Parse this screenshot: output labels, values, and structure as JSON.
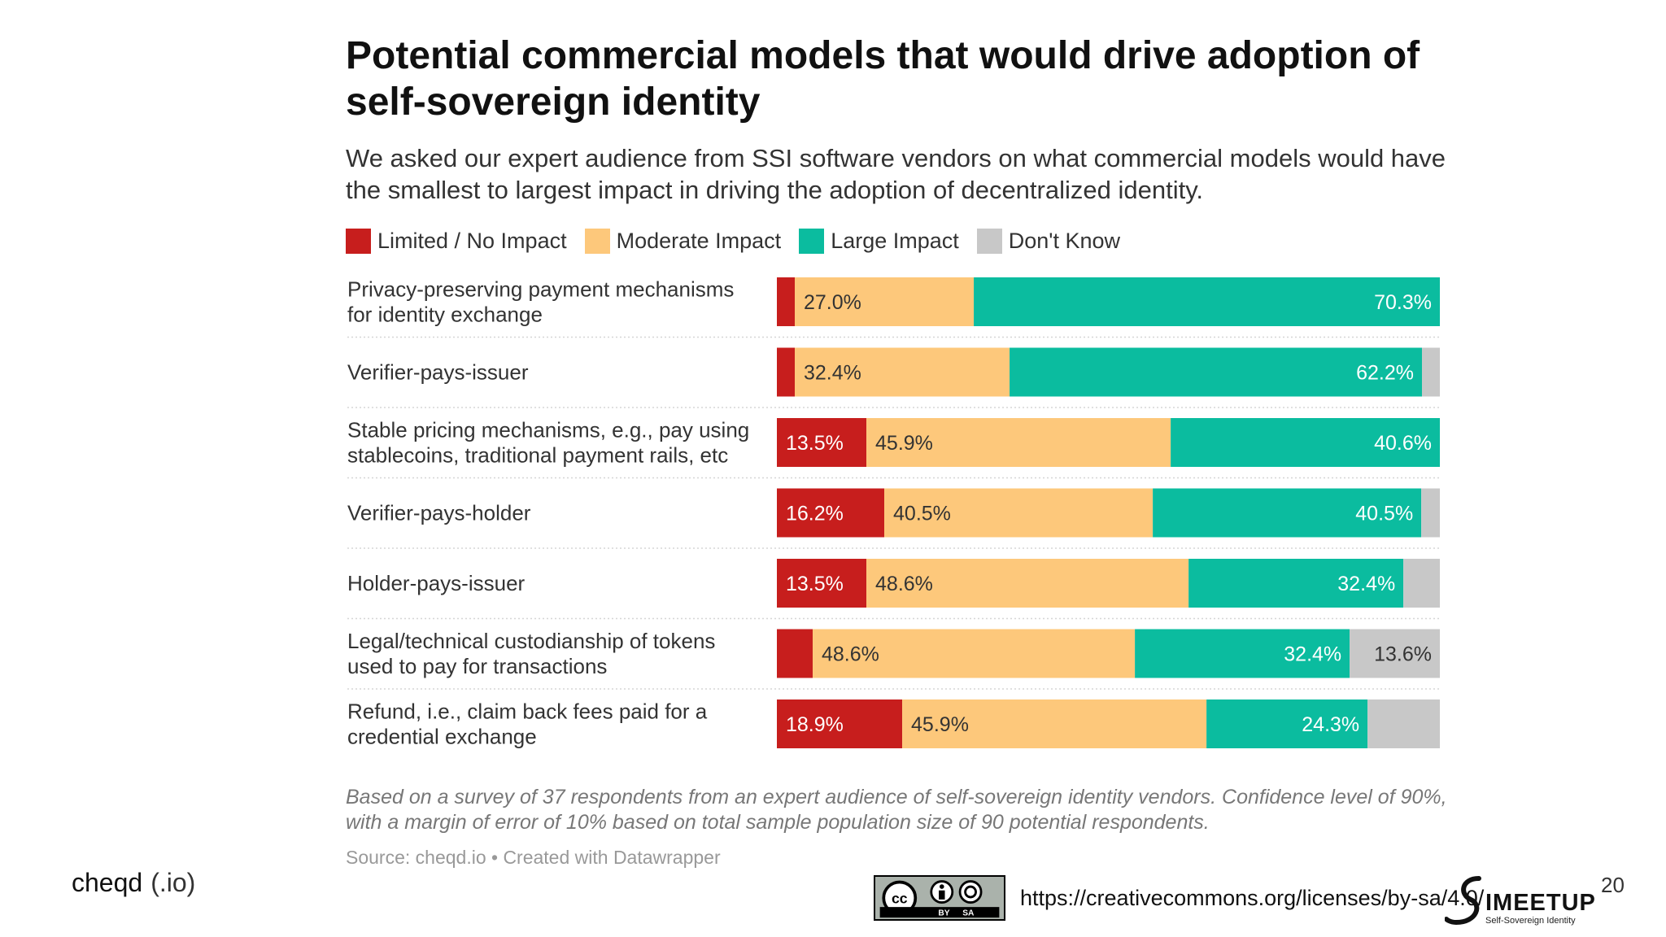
{
  "slide": {
    "brand": "cheqd",
    "brand_suffix": "(.io)",
    "license_url": "https://creativecommons.org/licenses/by-sa/4.0/",
    "license_badge": "BY SA",
    "meetup_logo_text": "IMEETUP",
    "meetup_logo_sub": "Self-Sovereign Identity",
    "page_number": "20"
  },
  "chart_data": {
    "type": "bar",
    "orientation": "horizontal",
    "stacked": true,
    "title": "Potential commercial models that would drive adoption of self-sovereign identity",
    "subtitle": "We asked our expert audience from SSI software vendors on what commercial models would have the smallest to largest impact in driving the adoption of decentralized identity.",
    "categories": [
      [
        "Privacy-preserving payment mechanisms",
        "for identity exchange"
      ],
      [
        "Verifier-pays-issuer"
      ],
      [
        "Stable pricing mechanisms, e.g., pay using",
        "stablecoins, traditional payment rails, etc"
      ],
      [
        "Verifier-pays-holder"
      ],
      [
        "Holder-pays-issuer"
      ],
      [
        "Legal/technical custodianship of tokens",
        "used to pay for transactions"
      ],
      [
        "Refund, i.e., claim back fees paid for a",
        "credential exchange"
      ]
    ],
    "series": [
      {
        "name": "Limited / No Impact",
        "color": "#c71e1d",
        "values": [
          2.7,
          2.7,
          13.5,
          16.2,
          13.5,
          5.4,
          18.9
        ],
        "labels": [
          "",
          "",
          "13.5%",
          "16.2%",
          "13.5%",
          "",
          "18.9%"
        ]
      },
      {
        "name": "Moderate Impact",
        "color": "#fdc87b",
        "values": [
          27.0,
          32.4,
          45.9,
          40.5,
          48.6,
          48.6,
          45.9
        ],
        "labels": [
          "27.0%",
          "32.4%",
          "45.9%",
          "40.5%",
          "48.6%",
          "48.6%",
          "45.9%"
        ]
      },
      {
        "name": "Large Impact",
        "color": "#0bbc9f",
        "values": [
          70.3,
          62.2,
          40.6,
          40.5,
          32.4,
          32.4,
          24.3
        ],
        "labels": [
          "70.3%",
          "62.2%",
          "40.6%",
          "40.5%",
          "32.4%",
          "32.4%",
          "24.3%"
        ]
      },
      {
        "name": "Don't Know",
        "color": "#c8c8c8",
        "values": [
          0,
          2.7,
          0,
          2.8,
          5.5,
          13.6,
          10.9
        ],
        "labels": [
          "",
          "",
          "",
          "",
          "",
          "13.6%",
          ""
        ]
      }
    ],
    "xlim": [
      0,
      100
    ],
    "legend_position": "top-left",
    "note": "Based on a survey of 37 respondents from an expert audience of self-sovereign identity vendors. Confidence level of 90%, with a margin of error of 10% based on total sample population size of 90 potential respondents.",
    "source": "Source: cheqd.io • Created with Datawrapper"
  }
}
